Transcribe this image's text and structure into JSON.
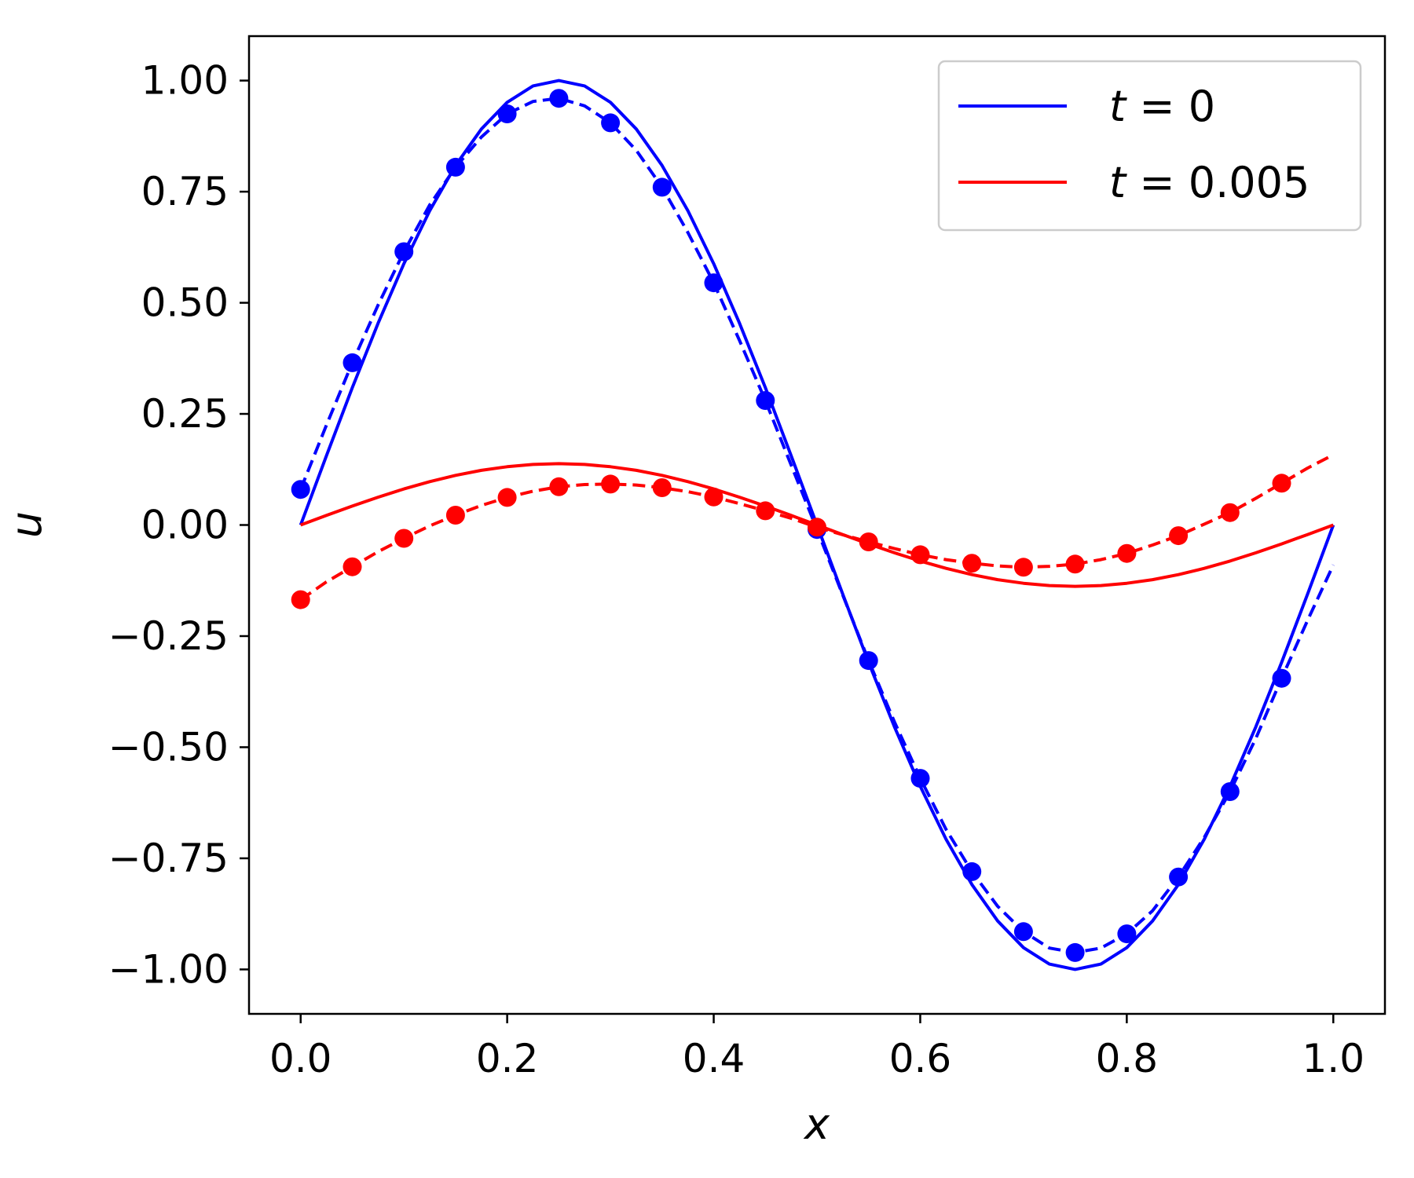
{
  "chart_data": {
    "type": "line",
    "xlabel": "x",
    "ylabel": "u",
    "xlim": [
      -0.05,
      1.05
    ],
    "ylim": [
      -1.1,
      1.1
    ],
    "x_ticks": [
      "0.0",
      "0.2",
      "0.4",
      "0.6",
      "0.8",
      "1.0"
    ],
    "y_ticks": [
      "1.00",
      "0.75",
      "0.50",
      "0.25",
      "0.00",
      "−0.25",
      "−0.50",
      "−0.75",
      "−1.00"
    ],
    "grid": false,
    "legend_position": "top-right",
    "legend": [
      {
        "var": "t",
        "eq": " = ",
        "val": "0",
        "color": "#0000ff"
      },
      {
        "var": "t",
        "eq": " = ",
        "val": "0.005",
        "color": "#ff0000"
      }
    ],
    "series": [
      {
        "group": 0,
        "style": "solid",
        "color": "#0000ff",
        "x": [
          0,
          0.025,
          0.05,
          0.075,
          0.1,
          0.125,
          0.15,
          0.175,
          0.2,
          0.225,
          0.25,
          0.275,
          0.3,
          0.325,
          0.35,
          0.375,
          0.4,
          0.425,
          0.45,
          0.475,
          0.5,
          0.525,
          0.55,
          0.575,
          0.6,
          0.625,
          0.65,
          0.675,
          0.7,
          0.725,
          0.75,
          0.775,
          0.8,
          0.825,
          0.85,
          0.875,
          0.9,
          0.925,
          0.95,
          0.975,
          1.0
        ],
        "y": [
          0,
          0.156,
          0.309,
          0.454,
          0.588,
          0.707,
          0.809,
          0.891,
          0.951,
          0.988,
          1.0,
          0.988,
          0.951,
          0.891,
          0.809,
          0.707,
          0.588,
          0.454,
          0.309,
          0.156,
          0,
          -0.156,
          -0.309,
          -0.454,
          -0.588,
          -0.707,
          -0.809,
          -0.891,
          -0.951,
          -0.988,
          -1.0,
          -0.988,
          -0.951,
          -0.891,
          -0.809,
          -0.707,
          -0.588,
          -0.454,
          -0.309,
          -0.156,
          0
        ]
      },
      {
        "group": 0,
        "style": "dashed",
        "color": "#0000ff",
        "x": [
          0,
          0.025,
          0.05,
          0.075,
          0.1,
          0.125,
          0.15,
          0.175,
          0.2,
          0.225,
          0.25,
          0.275,
          0.3,
          0.325,
          0.35,
          0.375,
          0.4,
          0.425,
          0.45,
          0.475,
          0.5,
          0.525,
          0.55,
          0.575,
          0.6,
          0.625,
          0.65,
          0.675,
          0.7,
          0.725,
          0.75,
          0.775,
          0.8,
          0.825,
          0.85,
          0.875,
          0.9,
          0.925,
          0.95,
          0.975,
          1.0
        ],
        "y": [
          0.08,
          0.225,
          0.365,
          0.495,
          0.615,
          0.72,
          0.805,
          0.873,
          0.925,
          0.953,
          0.96,
          0.943,
          0.905,
          0.843,
          0.76,
          0.658,
          0.545,
          0.415,
          0.28,
          0.135,
          -0.01,
          -0.158,
          -0.305,
          -0.443,
          -0.57,
          -0.685,
          -0.78,
          -0.858,
          -0.915,
          -0.952,
          -0.962,
          -0.952,
          -0.92,
          -0.868,
          -0.792,
          -0.703,
          -0.6,
          -0.48,
          -0.345,
          -0.215,
          -0.09
        ]
      },
      {
        "group": 0,
        "style": "markers",
        "color": "#0000ff",
        "x": [
          0,
          0.05,
          0.1,
          0.15,
          0.2,
          0.25,
          0.3,
          0.35,
          0.4,
          0.45,
          0.5,
          0.55,
          0.6,
          0.65,
          0.7,
          0.75,
          0.8,
          0.85,
          0.9,
          0.95
        ],
        "y": [
          0.08,
          0.365,
          0.615,
          0.805,
          0.925,
          0.96,
          0.905,
          0.76,
          0.545,
          0.28,
          -0.01,
          -0.305,
          -0.57,
          -0.78,
          -0.915,
          -0.962,
          -0.92,
          -0.792,
          -0.6,
          -0.345
        ]
      },
      {
        "group": 1,
        "style": "solid",
        "color": "#ff0000",
        "x": [
          0,
          0.025,
          0.05,
          0.075,
          0.1,
          0.125,
          0.15,
          0.175,
          0.2,
          0.225,
          0.25,
          0.275,
          0.3,
          0.325,
          0.35,
          0.375,
          0.4,
          0.425,
          0.45,
          0.475,
          0.5,
          0.525,
          0.55,
          0.575,
          0.6,
          0.625,
          0.65,
          0.675,
          0.7,
          0.725,
          0.75,
          0.775,
          0.8,
          0.825,
          0.85,
          0.875,
          0.9,
          0.925,
          0.95,
          0.975,
          1.0
        ],
        "y": [
          0,
          0.0215,
          0.0426,
          0.0626,
          0.0811,
          0.0976,
          0.1116,
          0.1229,
          0.1312,
          0.1363,
          0.138,
          0.1363,
          0.1312,
          0.1229,
          0.1116,
          0.0976,
          0.0811,
          0.0626,
          0.0426,
          0.0215,
          0,
          -0.0215,
          -0.0426,
          -0.0626,
          -0.0811,
          -0.0976,
          -0.1116,
          -0.1229,
          -0.1312,
          -0.1363,
          -0.138,
          -0.1363,
          -0.1312,
          -0.1229,
          -0.1116,
          -0.0976,
          -0.0811,
          -0.0626,
          -0.0426,
          -0.0215,
          0
        ]
      },
      {
        "group": 1,
        "style": "dashed",
        "color": "#ff0000",
        "x": [
          0,
          0.025,
          0.05,
          0.075,
          0.1,
          0.125,
          0.15,
          0.175,
          0.2,
          0.225,
          0.25,
          0.275,
          0.3,
          0.325,
          0.35,
          0.375,
          0.4,
          0.425,
          0.45,
          0.475,
          0.5,
          0.525,
          0.55,
          0.575,
          0.6,
          0.625,
          0.65,
          0.675,
          0.7,
          0.725,
          0.75,
          0.775,
          0.8,
          0.825,
          0.85,
          0.875,
          0.9,
          0.925,
          0.95,
          0.975,
          1.0
        ],
        "y": [
          -0.168,
          -0.128,
          -0.094,
          -0.06,
          -0.03,
          -0.002,
          0.022,
          0.044,
          0.062,
          0.076,
          0.086,
          0.091,
          0.092,
          0.09,
          0.084,
          0.075,
          0.063,
          0.048,
          0.032,
          0.015,
          -0.005,
          -0.022,
          -0.038,
          -0.053,
          -0.067,
          -0.078,
          -0.086,
          -0.092,
          -0.095,
          -0.093,
          -0.088,
          -0.078,
          -0.064,
          -0.045,
          -0.024,
          0.002,
          0.028,
          0.06,
          0.094,
          0.128,
          0.158
        ]
      },
      {
        "group": 1,
        "style": "markers",
        "color": "#ff0000",
        "x": [
          0,
          0.05,
          0.1,
          0.15,
          0.2,
          0.25,
          0.3,
          0.35,
          0.4,
          0.45,
          0.5,
          0.55,
          0.6,
          0.65,
          0.7,
          0.75,
          0.8,
          0.85,
          0.9,
          0.95
        ],
        "y": [
          -0.168,
          -0.094,
          -0.03,
          0.022,
          0.062,
          0.086,
          0.092,
          0.084,
          0.063,
          0.032,
          -0.005,
          -0.038,
          -0.067,
          -0.086,
          -0.095,
          -0.088,
          -0.064,
          -0.024,
          0.028,
          0.094
        ]
      }
    ]
  }
}
